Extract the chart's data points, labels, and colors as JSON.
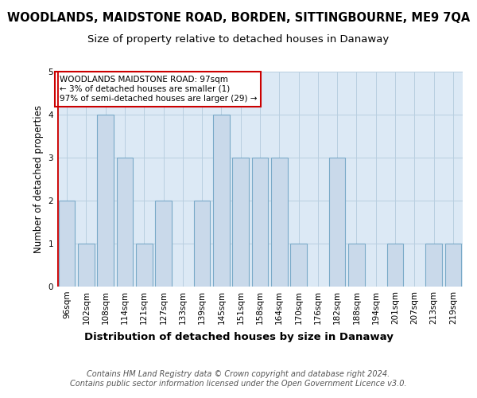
{
  "title": "WOODLANDS, MAIDSTONE ROAD, BORDEN, SITTINGBOURNE, ME9 7QA",
  "subtitle": "Size of property relative to detached houses in Danaway",
  "xlabel": "Distribution of detached houses by size in Danaway",
  "ylabel": "Number of detached properties",
  "categories": [
    "96sqm",
    "102sqm",
    "108sqm",
    "114sqm",
    "121sqm",
    "127sqm",
    "133sqm",
    "139sqm",
    "145sqm",
    "151sqm",
    "158sqm",
    "164sqm",
    "170sqm",
    "176sqm",
    "182sqm",
    "188sqm",
    "194sqm",
    "201sqm",
    "207sqm",
    "213sqm",
    "219sqm"
  ],
  "values": [
    2,
    1,
    4,
    3,
    1,
    2,
    0,
    2,
    4,
    3,
    3,
    3,
    1,
    0,
    3,
    1,
    0,
    1,
    0,
    1,
    1
  ],
  "bar_color": "#c9d9ea",
  "bar_edge_color": "#7aaac8",
  "highlight_index": 0,
  "highlight_edge_color": "#cc0000",
  "ylim": [
    0,
    5
  ],
  "yticks": [
    0,
    1,
    2,
    3,
    4,
    5
  ],
  "annotation_text": "WOODLANDS MAIDSTONE ROAD: 97sqm\n← 3% of detached houses are smaller (1)\n97% of semi-detached houses are larger (29) →",
  "annotation_box_edge_color": "#cc0000",
  "footer_line1": "Contains HM Land Registry data © Crown copyright and database right 2024.",
  "footer_line2": "Contains public sector information licensed under the Open Government Licence v3.0.",
  "background_color": "#ffffff",
  "plot_bg_color": "#dce9f5",
  "grid_color": "#b8cfe0",
  "title_fontsize": 10.5,
  "subtitle_fontsize": 9.5,
  "ylabel_fontsize": 8.5,
  "xlabel_fontsize": 9.5,
  "tick_fontsize": 7.5,
  "annotation_fontsize": 7.5,
  "footer_fontsize": 7.0
}
